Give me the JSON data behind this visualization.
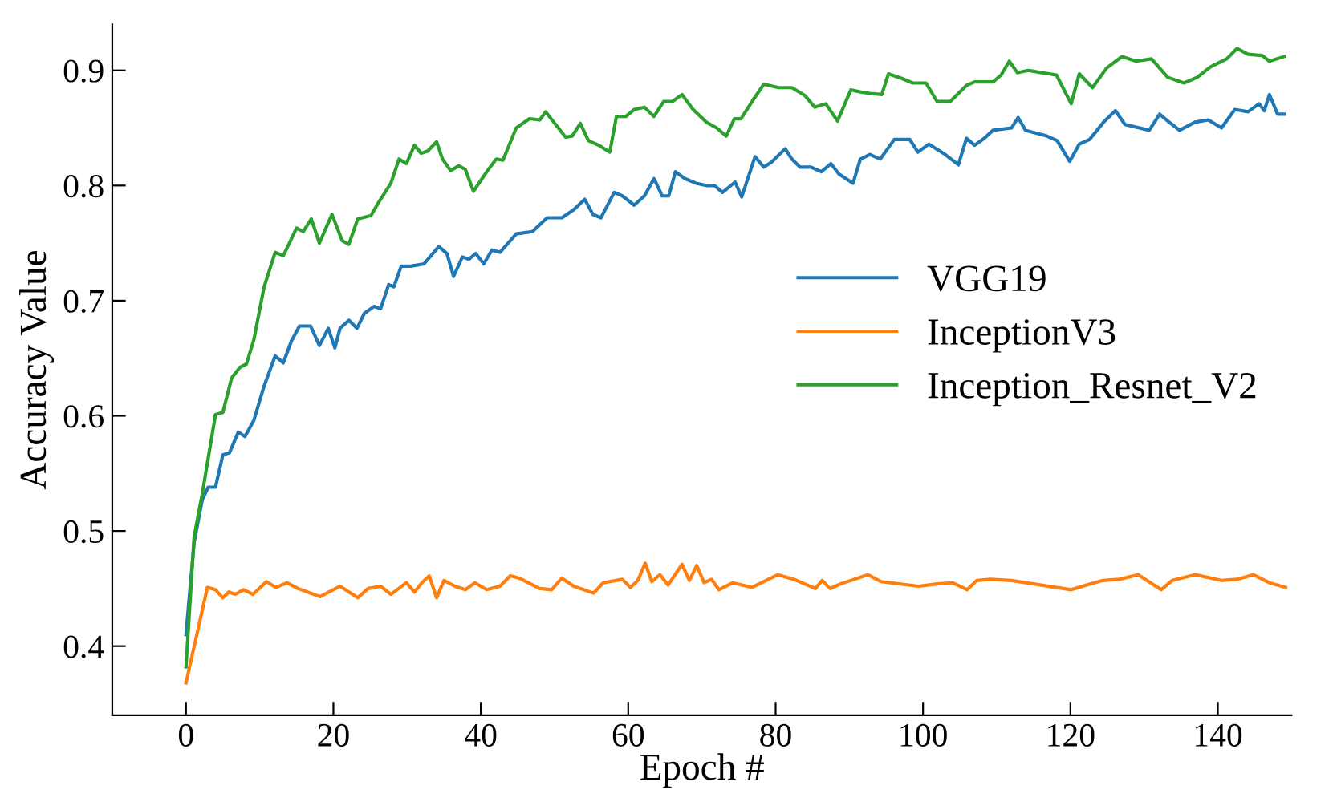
{
  "chart_data": {
    "type": "line",
    "xlabel": "Epoch #",
    "ylabel": "Accuracy Value",
    "xlim": [
      -10,
      150
    ],
    "ylim": [
      0.34,
      0.94
    ],
    "xticks": [
      0,
      20,
      40,
      60,
      80,
      100,
      120,
      140
    ],
    "yticks": [
      0.4,
      0.5,
      0.6,
      0.7,
      0.8,
      0.9
    ],
    "grid": false,
    "legend": "right",
    "marker": "none",
    "line_style": "solid",
    "series": [
      {
        "name": "VGG19",
        "color": "#1f77b4",
        "x": [
          0,
          1.1,
          2.2,
          3,
          4,
          5,
          5.9,
          7.1,
          8,
          9.2,
          10.6,
          12.1,
          13.2,
          14.3,
          15.4,
          16.9,
          18.1,
          19.3,
          20.2,
          20.9,
          22.1,
          23.2,
          24.2,
          25.5,
          26.4,
          27.5,
          28.2,
          29.2,
          30.5,
          32.3,
          34.3,
          35.4,
          36.3,
          37.5,
          38.4,
          39.3,
          40.4,
          41.5,
          42.6,
          44.8,
          47,
          49,
          51,
          52.6,
          54.1,
          55.2,
          56.3,
          58.1,
          59.2,
          60.8,
          62.2,
          63.5,
          64.6,
          65.5,
          66.4,
          67.7,
          69.2,
          70.6,
          71.7,
          72.8,
          74.5,
          75.4,
          77.2,
          78.4,
          79.4,
          81.3,
          82.2,
          83.3,
          84.8,
          86.2,
          87.5,
          88.6,
          90.5,
          91.5,
          92.8,
          94.2,
          96.1,
          98.2,
          99.3,
          100.8,
          103,
          104.8,
          105.9,
          107,
          108.3,
          109.5,
          112,
          112.9,
          113.9,
          116.8,
          118.2,
          119.9,
          121.2,
          122.6,
          124.5,
          126.1,
          127.4,
          130.7,
          132.1,
          133.2,
          134.8,
          136.9,
          138.7,
          140.5,
          142.3,
          144.1,
          145.6,
          146.3,
          147,
          148.1,
          149
        ],
        "values": [
          0.41,
          0.49,
          0.527,
          0.538,
          0.538,
          0.566,
          0.568,
          0.586,
          0.582,
          0.596,
          0.626,
          0.652,
          0.646,
          0.665,
          0.678,
          0.678,
          0.661,
          0.676,
          0.659,
          0.676,
          0.683,
          0.676,
          0.689,
          0.695,
          0.693,
          0.714,
          0.712,
          0.73,
          0.73,
          0.732,
          0.747,
          0.741,
          0.721,
          0.738,
          0.736,
          0.741,
          0.732,
          0.744,
          0.742,
          0.758,
          0.76,
          0.772,
          0.772,
          0.779,
          0.788,
          0.775,
          0.772,
          0.794,
          0.791,
          0.783,
          0.791,
          0.806,
          0.791,
          0.791,
          0.812,
          0.806,
          0.802,
          0.8,
          0.8,
          0.794,
          0.803,
          0.79,
          0.825,
          0.816,
          0.82,
          0.832,
          0.823,
          0.816,
          0.816,
          0.812,
          0.819,
          0.81,
          0.802,
          0.823,
          0.827,
          0.823,
          0.84,
          0.84,
          0.829,
          0.836,
          0.827,
          0.818,
          0.841,
          0.835,
          0.841,
          0.848,
          0.85,
          0.859,
          0.848,
          0.843,
          0.839,
          0.821,
          0.836,
          0.84,
          0.855,
          0.865,
          0.853,
          0.848,
          0.862,
          0.856,
          0.848,
          0.855,
          0.857,
          0.85,
          0.866,
          0.864,
          0.871,
          0.865,
          0.879,
          0.862,
          0.862
        ]
      },
      {
        "name": "InceptionV3",
        "color": "#ff7f0e",
        "x": [
          0,
          2.9,
          4,
          5,
          5.8,
          6.7,
          7.8,
          9.1,
          10.9,
          12.2,
          13.7,
          15.2,
          18.2,
          20.9,
          23.3,
          24.7,
          26.4,
          27.8,
          29.9,
          31,
          32,
          33,
          34,
          35,
          36.5,
          37.9,
          39.2,
          40.8,
          42.6,
          44,
          45.2,
          48,
          49.6,
          51,
          52.6,
          55.3,
          56.6,
          59.2,
          60.3,
          61.3,
          62.3,
          63.2,
          64.3,
          65.4,
          67.3,
          68.3,
          69.3,
          70.3,
          71.3,
          72.3,
          74.2,
          76.8,
          80.3,
          82.5,
          85.4,
          86.3,
          87.4,
          88.8,
          92.5,
          94.3,
          99.4,
          101.9,
          104,
          106,
          107.3,
          109.1,
          112,
          120.1,
          122.2,
          124.4,
          126.6,
          129.2,
          132.3,
          133.8,
          136.9,
          140.5,
          142.6,
          144.8,
          147,
          149.2
        ],
        "values": [
          0.368,
          0.451,
          0.449,
          0.442,
          0.447,
          0.445,
          0.449,
          0.445,
          0.456,
          0.451,
          0.455,
          0.45,
          0.443,
          0.452,
          0.442,
          0.45,
          0.452,
          0.445,
          0.455,
          0.447,
          0.455,
          0.461,
          0.442,
          0.457,
          0.452,
          0.449,
          0.455,
          0.449,
          0.452,
          0.461,
          0.459,
          0.45,
          0.449,
          0.459,
          0.452,
          0.446,
          0.455,
          0.458,
          0.451,
          0.457,
          0.472,
          0.456,
          0.462,
          0.453,
          0.471,
          0.457,
          0.47,
          0.455,
          0.458,
          0.449,
          0.455,
          0.451,
          0.462,
          0.458,
          0.45,
          0.457,
          0.45,
          0.454,
          0.462,
          0.456,
          0.452,
          0.454,
          0.455,
          0.449,
          0.457,
          0.458,
          0.457,
          0.449,
          0.453,
          0.457,
          0.458,
          0.462,
          0.449,
          0.457,
          0.462,
          0.457,
          0.458,
          0.462,
          0.455,
          0.451
        ]
      },
      {
        "name": "Inception_Resnet_V2",
        "color": "#2ca02c",
        "x": [
          0,
          1.1,
          2.2,
          2.9,
          4,
          5,
          6.2,
          7.3,
          8.2,
          9.2,
          10.6,
          12.1,
          13.2,
          15,
          15.9,
          17,
          18.1,
          19.8,
          21.2,
          22.1,
          23.3,
          25.1,
          26.1,
          27.8,
          28.9,
          29.9,
          31,
          31.9,
          32.8,
          34,
          34.8,
          35.9,
          37,
          37.9,
          39,
          40.8,
          42.1,
          43,
          44.8,
          46.6,
          48,
          48.8,
          51.5,
          52.4,
          53.5,
          54.6,
          56,
          57.5,
          58.4,
          59.7,
          60.8,
          62.2,
          63.5,
          64.8,
          66,
          67.3,
          68.8,
          70.6,
          72,
          73.3,
          74.4,
          75.3,
          76.8,
          78.4,
          80.4,
          82.2,
          84,
          85.3,
          86.8,
          88.4,
          90.2,
          91.7,
          92.8,
          94.4,
          95.3,
          97.1,
          98.6,
          100.4,
          101.9,
          103.7,
          105.9,
          107,
          109.5,
          110.6,
          111.7,
          112.8,
          114.3,
          116.1,
          118.1,
          120.1,
          121.2,
          123,
          124.9,
          127,
          128.9,
          131,
          133.2,
          135.4,
          137.2,
          139,
          141.2,
          142.6,
          144.1,
          146,
          147,
          149
        ],
        "values": [
          0.382,
          0.495,
          0.532,
          0.559,
          0.601,
          0.603,
          0.633,
          0.642,
          0.645,
          0.666,
          0.712,
          0.742,
          0.739,
          0.763,
          0.76,
          0.771,
          0.75,
          0.775,
          0.752,
          0.749,
          0.771,
          0.774,
          0.785,
          0.802,
          0.823,
          0.819,
          0.835,
          0.828,
          0.83,
          0.838,
          0.823,
          0.813,
          0.817,
          0.814,
          0.795,
          0.812,
          0.823,
          0.822,
          0.85,
          0.858,
          0.857,
          0.864,
          0.842,
          0.843,
          0.854,
          0.839,
          0.835,
          0.829,
          0.86,
          0.86,
          0.866,
          0.868,
          0.86,
          0.873,
          0.873,
          0.879,
          0.866,
          0.855,
          0.85,
          0.843,
          0.858,
          0.858,
          0.873,
          0.888,
          0.885,
          0.885,
          0.878,
          0.868,
          0.871,
          0.856,
          0.883,
          0.881,
          0.88,
          0.879,
          0.897,
          0.893,
          0.889,
          0.889,
          0.873,
          0.873,
          0.887,
          0.89,
          0.89,
          0.896,
          0.908,
          0.898,
          0.9,
          0.898,
          0.896,
          0.871,
          0.897,
          0.885,
          0.902,
          0.912,
          0.908,
          0.91,
          0.894,
          0.889,
          0.894,
          0.903,
          0.91,
          0.919,
          0.914,
          0.913,
          0.908,
          0.912
        ]
      }
    ]
  }
}
